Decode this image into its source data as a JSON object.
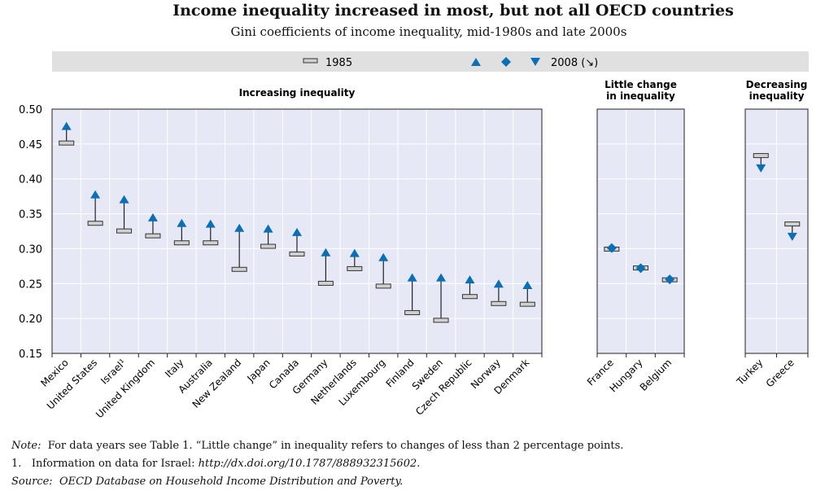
{
  "title": "Income inequality increased in most, but not all OECD countries",
  "subtitle": "Gini coefficients of income inequality, mid-1980s and late 2000s",
  "notes": {
    "note_label": "Note:",
    "note_text": "For data years see Table 1. “Little change” in inequality refers to changes of less than 2 percentage points.",
    "footnote_num": "1.",
    "footnote_text": "Information on data for Israel:",
    "footnote_link": "http://dx.doi.org/10.1787/888932315602",
    "footnote_end": ".",
    "source_label": "Source:",
    "source_text": "OECD Database on Household Income Distribution and Poverty."
  },
  "colors": {
    "panel_bg": "#e6e8f5",
    "marker": "#0b6fb5",
    "legend_bg": "#e0e0e0",
    "bar_fill": "#d0d0d0"
  },
  "chart_data": {
    "type": "scatter",
    "ylim": [
      0.15,
      0.5
    ],
    "yticks": [
      "0.50",
      "0.45",
      "0.40",
      "0.35",
      "0.30",
      "0.25",
      "0.20",
      "0.15"
    ],
    "legend": {
      "s1985": "1985",
      "s2008": "2008 (↘)"
    },
    "panels": [
      {
        "title": "Increasing inequality",
        "direction": "up",
        "categories": [
          "Mexico",
          "United States",
          "Israel¹",
          "United Kingdom",
          "Italy",
          "Australia",
          "New Zealand",
          "Japan",
          "Canada",
          "Germany",
          "Netherlands",
          "Luxembourg",
          "Finland",
          "Sweden",
          "Czech Republic",
          "Norway",
          "Denmark"
        ],
        "y1985": [
          0.452,
          0.337,
          0.326,
          0.319,
          0.309,
          0.309,
          0.271,
          0.304,
          0.293,
          0.251,
          0.272,
          0.247,
          0.209,
          0.198,
          0.232,
          0.222,
          0.221
        ],
        "y2008": [
          0.476,
          0.378,
          0.371,
          0.345,
          0.337,
          0.336,
          0.33,
          0.329,
          0.324,
          0.295,
          0.294,
          0.288,
          0.259,
          0.259,
          0.256,
          0.25,
          0.248
        ]
      },
      {
        "title": "Little change in inequality",
        "direction": "same",
        "categories": [
          "France",
          "Hungary",
          "Belgium"
        ],
        "y1985": [
          0.3,
          0.273,
          0.256
        ],
        "y2008": [
          0.301,
          0.272,
          0.256
        ]
      },
      {
        "title": "Decreasing inequality",
        "direction": "down",
        "categories": [
          "Turkey",
          "Greece"
        ],
        "y1985": [
          0.434,
          0.336
        ],
        "y2008": [
          0.415,
          0.317
        ]
      }
    ]
  }
}
